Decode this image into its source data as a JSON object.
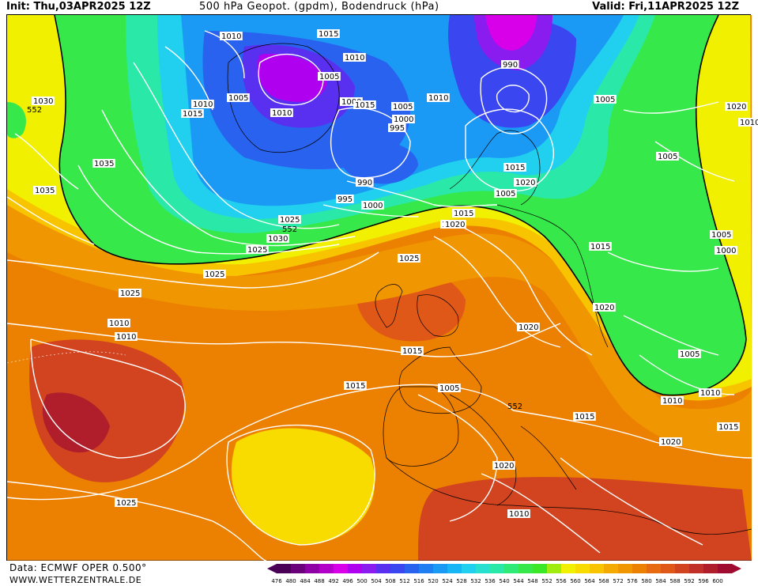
{
  "header": {
    "init": "Init: Thu,03APR2025 12Z",
    "title": "500 hPa Geopot. (gpdm), Bodendruck (hPa)",
    "valid": "Valid: Fri,11APR2025 12Z"
  },
  "footer": {
    "source": "Data: ECMWF OPER 0.500°",
    "site": "WWW.WETTERZENTRALE.DE"
  },
  "legend": {
    "ticks": [
      "476",
      "480",
      "484",
      "488",
      "492",
      "496",
      "500",
      "504",
      "508",
      "512",
      "516",
      "520",
      "524",
      "528",
      "532",
      "536",
      "540",
      "544",
      "548",
      "552",
      "556",
      "560",
      "564",
      "568",
      "572",
      "576",
      "580",
      "584",
      "588",
      "592",
      "596",
      "600"
    ],
    "colors": [
      "#4b0057",
      "#6a007a",
      "#8e00a5",
      "#b300c9",
      "#d800e8",
      "#b000f0",
      "#8a1cf0",
      "#5a30f0",
      "#3a46f0",
      "#2a62f0",
      "#1e7ef2",
      "#1a9af4",
      "#18b6f4",
      "#20d0ee",
      "#28e0d0",
      "#2ae8a8",
      "#30ea78",
      "#36e84a",
      "#3ae828",
      "#a0ec10",
      "#f0f000",
      "#f8dc00",
      "#f8c400",
      "#f4aa00",
      "#f09600",
      "#ec8000",
      "#e86a10",
      "#e05818",
      "#d24420",
      "#c2302a",
      "#b01e2c",
      "#a00c30"
    ]
  },
  "map": {
    "isobar_labels": [
      "1010",
      "1015",
      "1010",
      "1005",
      "1005",
      "1010",
      "1000",
      "1015",
      "1005",
      "1000",
      "995",
      "1010",
      "990",
      "1005",
      "1030",
      "552",
      "1015",
      "1010",
      "1035",
      "1035",
      "990",
      "995",
      "1000",
      "1005",
      "1015",
      "1020",
      "1025",
      "552",
      "1030",
      "1025",
      "1025",
      "1025",
      "1015",
      "1020",
      "1025",
      "1025",
      "1010",
      "1010",
      "1015",
      "1020",
      "1020",
      "1015",
      "1010",
      "1020",
      "1005",
      "1010",
      "1005",
      "1000",
      "1005",
      "1010",
      "1015",
      "1015",
      "1005",
      "1010",
      "552",
      "1015",
      "1020",
      "1020",
      "1025",
      "1010"
    ],
    "contour_552_label": "552"
  }
}
